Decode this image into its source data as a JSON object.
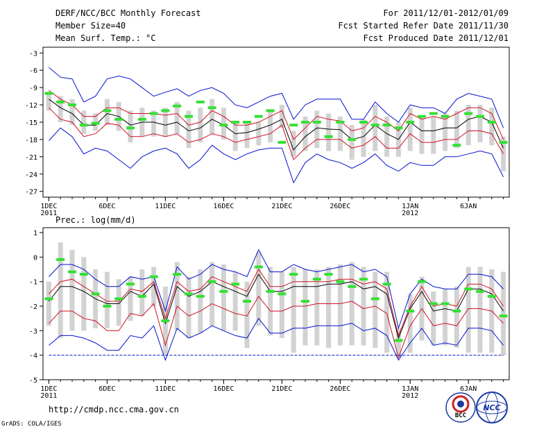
{
  "header": {
    "title": "DERF/NCC/BCC Monthly Forecast",
    "member": "Member Size=40",
    "variable": "Mean Surf. Temp.: °C",
    "period": "For 2011/12/01-2012/01/09",
    "refer": "Fcst Started Refer Date 2011/11/30",
    "produced": "Fcst Produced Date 2011/12/01"
  },
  "footer": {
    "url": "http://cmdp.ncc.cma.gov.cn",
    "credit": "GrADS: COLA/IGES",
    "logo1": "BCC",
    "logo2": "NCC"
  },
  "colors": {
    "mean": "#000000",
    "spread": "#d01020",
    "range": "#0010d0",
    "box": "#d2d2d2",
    "obs": "#33e033"
  },
  "chart_data": [
    {
      "type": "line",
      "title": "Mean Surf. Temp.: °C",
      "x": [
        1,
        2,
        3,
        4,
        5,
        6,
        7,
        8,
        9,
        10,
        11,
        12,
        13,
        14,
        15,
        16,
        17,
        18,
        19,
        20,
        21,
        22,
        23,
        24,
        25,
        26,
        27,
        28,
        29,
        30,
        31,
        32,
        33,
        34,
        35,
        36,
        37,
        38,
        39,
        40
      ],
      "xticks": [
        {
          "day": 1,
          "label": "1DEC",
          "sub": "2011"
        },
        {
          "day": 6,
          "label": "6DEC",
          "sub": ""
        },
        {
          "day": 11,
          "label": "11DEC",
          "sub": ""
        },
        {
          "day": 16,
          "label": "16DEC",
          "sub": ""
        },
        {
          "day": 21,
          "label": "21DEC",
          "sub": ""
        },
        {
          "day": 26,
          "label": "26DEC",
          "sub": ""
        },
        {
          "day": 32,
          "label": "1JAN",
          "sub": "2012"
        },
        {
          "day": 37,
          "label": "6JAN",
          "sub": ""
        }
      ],
      "xlim": [
        0.5,
        40.5
      ],
      "ylim": [
        -28,
        -2
      ],
      "yticks": [
        -3,
        -6,
        -9,
        -12,
        -15,
        -18,
        -21,
        -24,
        -27
      ],
      "series": [
        {
          "name": "max",
          "role": "range",
          "values": [
            -5.5,
            -7.2,
            -7.5,
            -11.5,
            -10.5,
            -7.5,
            -7,
            -7.5,
            -9,
            -10.5,
            -9.8,
            -9.2,
            -10.5,
            -9.5,
            -9,
            -10,
            -12,
            -12.5,
            -11.5,
            -10.5,
            -10,
            -14.5,
            -12,
            -11,
            -11,
            -11,
            -14.5,
            -14.5,
            -11.5,
            -13.5,
            -15,
            -12,
            -12.5,
            -12.5,
            -13.5,
            -11,
            -10,
            -10.5,
            -11,
            -16
          ]
        },
        {
          "name": "upper",
          "role": "spread",
          "values": [
            -9.5,
            -11,
            -12,
            -14,
            -14,
            -12.5,
            -12.5,
            -13.5,
            -13.5,
            -13.5,
            -13.8,
            -13.5,
            -15.5,
            -15,
            -13,
            -14,
            -15.5,
            -15.5,
            -15,
            -14,
            -13,
            -18,
            -16,
            -14,
            -14.5,
            -14.8,
            -16.5,
            -16,
            -14,
            -15,
            -16.5,
            -13.5,
            -14.5,
            -14,
            -14.5,
            -13.5,
            -12.5,
            -12.5,
            -13.5,
            -18
          ]
        },
        {
          "name": "mean",
          "role": "mean",
          "values": [
            -11,
            -12.5,
            -13.5,
            -15.5,
            -15.5,
            -13.5,
            -14,
            -15.5,
            -15,
            -15,
            -15.5,
            -15,
            -16.5,
            -16,
            -14.5,
            -15.5,
            -17,
            -16.8,
            -16.2,
            -15.5,
            -14.5,
            -19.8,
            -17.5,
            -16,
            -16.2,
            -16.3,
            -18,
            -17.5,
            -15.5,
            -17,
            -18,
            -15,
            -16.5,
            -16.5,
            -16,
            -16,
            -14.5,
            -14,
            -15,
            -19.5
          ]
        },
        {
          "name": "lower",
          "role": "spread",
          "values": [
            -12.5,
            -14.5,
            -15,
            -17.5,
            -17,
            -15.2,
            -15.5,
            -17.5,
            -17.5,
            -17,
            -17.5,
            -17,
            -18.5,
            -18,
            -17,
            -17.5,
            -18.5,
            -18,
            -17.5,
            -17,
            -15.5,
            -21.5,
            -19.5,
            -18,
            -18,
            -18,
            -19.5,
            -19,
            -17.5,
            -19.5,
            -19.5,
            -17,
            -18.5,
            -18.5,
            -18,
            -18,
            -16.5,
            -16.5,
            -17,
            -20.5
          ]
        },
        {
          "name": "min",
          "role": "range",
          "values": [
            -18.2,
            -16,
            -17.5,
            -20.5,
            -19.5,
            -20,
            -21.5,
            -23,
            -21,
            -20,
            -19.5,
            -20.5,
            -23,
            -21.5,
            -19,
            -20.5,
            -21.5,
            -20.5,
            -19.8,
            -19.5,
            -19.5,
            -25.5,
            -22,
            -20.5,
            -21.5,
            -22,
            -23,
            -22,
            -20.5,
            -22.5,
            -23.5,
            -22,
            -22.5,
            -22.5,
            -21,
            -21,
            -20.5,
            -20,
            -20.5,
            -24.5
          ]
        },
        {
          "name": "box_top",
          "role": "box",
          "values": [
            -10,
            -10.5,
            -11,
            -13,
            -13.5,
            -11,
            -11.5,
            -13,
            -12.5,
            -13,
            -12.5,
            -11.5,
            -13,
            -12.5,
            -11,
            -12.5,
            -15,
            -15,
            -15,
            -13,
            -12,
            -16.5,
            -14,
            -13,
            -13.5,
            -14,
            -15.5,
            -14.5,
            -12,
            -14,
            -15,
            -12.5,
            -14,
            -14,
            -13.5,
            -13,
            -12,
            -12,
            -12.5,
            -17.5
          ]
        },
        {
          "name": "box_bottom",
          "role": "box",
          "values": [
            -13,
            -15,
            -15.5,
            -17,
            -16.5,
            -15.5,
            -16.5,
            -18.5,
            -17.5,
            -17.5,
            -17.5,
            -17,
            -19.5,
            -18.5,
            -17,
            -18,
            -20,
            -19.5,
            -19,
            -18.5,
            -16,
            -21,
            -20,
            -19.5,
            -20,
            -20,
            -21.5,
            -21,
            -20,
            -21,
            -21,
            -20,
            -20.5,
            -20.5,
            -20,
            -19.5,
            -19,
            -18.5,
            -19,
            -23.5
          ]
        },
        {
          "name": "observed",
          "role": "obs",
          "values": [
            -10,
            -11.5,
            -12,
            -15.5,
            -15.2,
            -13,
            -14.5,
            -16,
            -14.5,
            -13.5,
            -13,
            -12.2,
            -14,
            -11.5,
            -12.5,
            -15.5,
            -15,
            -15,
            -14,
            -13,
            -18.5,
            -15.5,
            -15,
            -15,
            -17.5,
            -15,
            -18,
            -15,
            -15.5,
            -15.5,
            -16,
            -15,
            -14,
            -13.5,
            -14,
            -19,
            -13.5,
            -14,
            -15,
            -18.5
          ]
        }
      ]
    },
    {
      "type": "line",
      "title": "Prec.: log(mm/d)",
      "x": [
        1,
        2,
        3,
        4,
        5,
        6,
        7,
        8,
        9,
        10,
        11,
        12,
        13,
        14,
        15,
        16,
        17,
        18,
        19,
        20,
        21,
        22,
        23,
        24,
        25,
        26,
        27,
        28,
        29,
        30,
        31,
        32,
        33,
        34,
        35,
        36,
        37,
        38,
        39,
        40
      ],
      "xticks": [
        {
          "day": 1,
          "label": "1DEC",
          "sub": "2011"
        },
        {
          "day": 6,
          "label": "6DEC",
          "sub": ""
        },
        {
          "day": 11,
          "label": "11DEC",
          "sub": ""
        },
        {
          "day": 16,
          "label": "16DEC",
          "sub": ""
        },
        {
          "day": 21,
          "label": "21DEC",
          "sub": ""
        },
        {
          "day": 26,
          "label": "26DEC",
          "sub": ""
        },
        {
          "day": 32,
          "label": "1JAN",
          "sub": "2012"
        },
        {
          "day": 37,
          "label": "6JAN",
          "sub": ""
        }
      ],
      "xlim": [
        0.5,
        40.5
      ],
      "ylim": [
        -5,
        1.2
      ],
      "yticks": [
        1,
        0,
        -1,
        -2,
        -3,
        -4,
        -5
      ],
      "series": [
        {
          "name": "max",
          "role": "range",
          "values": [
            -0.8,
            -0.3,
            -0.3,
            -0.5,
            -0.9,
            -1.2,
            -1.2,
            -0.8,
            -0.9,
            -0.8,
            -2.2,
            -0.4,
            -0.9,
            -0.7,
            -0.3,
            -0.5,
            -0.6,
            -0.8,
            0.3,
            -0.6,
            -0.6,
            -0.3,
            -0.5,
            -0.6,
            -0.5,
            -0.4,
            -0.3,
            -0.6,
            -0.5,
            -0.8,
            -2.9,
            -1.5,
            -0.9,
            -1.2,
            -1.3,
            -1.3,
            -0.7,
            -0.7,
            -0.8,
            -1.3
          ]
        },
        {
          "name": "upper",
          "role": "spread",
          "values": [
            -1.5,
            -1,
            -0.9,
            -1.2,
            -1.5,
            -1.8,
            -1.8,
            -1.3,
            -1.4,
            -1,
            -2.5,
            -1,
            -1.4,
            -1.3,
            -0.8,
            -1,
            -1.2,
            -1.4,
            -0.5,
            -1.2,
            -1.2,
            -1,
            -1,
            -1,
            -1,
            -0.9,
            -0.9,
            -1.1,
            -1,
            -1.3,
            -3.2,
            -2,
            -1.2,
            -2,
            -1.9,
            -2,
            -1.1,
            -1.1,
            -1.3,
            -2
          ]
        },
        {
          "name": "mean",
          "role": "mean",
          "values": [
            -1.8,
            -1.2,
            -1.2,
            -1.4,
            -1.7,
            -1.9,
            -1.9,
            -1.4,
            -1.6,
            -1.1,
            -2.7,
            -1.2,
            -1.6,
            -1.4,
            -1,
            -1.2,
            -1.4,
            -1.6,
            -0.7,
            -1.4,
            -1.4,
            -1.2,
            -1.2,
            -1.2,
            -1.1,
            -1.1,
            -1,
            -1.3,
            -1.2,
            -1.5,
            -3.3,
            -2.1,
            -1.4,
            -2.2,
            -2.1,
            -2.2,
            -1.3,
            -1.3,
            -1.5,
            -2.2
          ]
        },
        {
          "name": "lower",
          "role": "spread",
          "values": [
            -2.7,
            -2.2,
            -2.2,
            -2.5,
            -2.6,
            -3,
            -3,
            -2.3,
            -2.4,
            -1.9,
            -3.6,
            -2,
            -2.4,
            -2.2,
            -1.9,
            -2.1,
            -2.3,
            -2.4,
            -1.6,
            -2.2,
            -2.2,
            -2,
            -2,
            -1.9,
            -1.9,
            -1.9,
            -1.8,
            -2.1,
            -2,
            -2.3,
            -4.1,
            -2.8,
            -2.1,
            -2.8,
            -2.7,
            -2.8,
            -2.1,
            -2.1,
            -2.2,
            -2.7
          ]
        },
        {
          "name": "min",
          "role": "range",
          "values": [
            -3.6,
            -3.2,
            -3.2,
            -3.3,
            -3.5,
            -3.8,
            -3.8,
            -3.2,
            -3.3,
            -2.8,
            -4.2,
            -2.9,
            -3.3,
            -3.1,
            -2.8,
            -3,
            -3.2,
            -3.3,
            -2.5,
            -3.1,
            -3.1,
            -2.9,
            -2.9,
            -2.8,
            -2.8,
            -2.8,
            -2.7,
            -3,
            -2.9,
            -3.2,
            -4.2,
            -3.5,
            -2.9,
            -3.6,
            -3.5,
            -3.6,
            -2.9,
            -2.9,
            -3,
            -3.6
          ]
        },
        {
          "name": "floor",
          "role": "range",
          "values": [
            -4,
            -4,
            -4,
            -4,
            -4,
            -4,
            -4,
            -4,
            -4,
            -4,
            -4,
            -4,
            -4,
            -4,
            -4,
            -4,
            -4,
            -4,
            -4,
            -4,
            -4,
            -4,
            -4,
            -4,
            -4,
            -4,
            -4,
            -4,
            -4,
            -4,
            -4,
            -4,
            -4,
            -4,
            -4,
            -4,
            -4,
            -4,
            -4,
            -4
          ]
        },
        {
          "name": "box_top",
          "role": "box",
          "values": [
            -1,
            0.6,
            0.3,
            0,
            -0.5,
            -0.6,
            -0.9,
            -0.8,
            -0.5,
            -0.4,
            -1.2,
            -0.2,
            -0.8,
            -0.5,
            -0.2,
            -0.3,
            -0.6,
            -1,
            0.2,
            -0.4,
            -0.6,
            -0.4,
            -0.5,
            -0.5,
            -0.4,
            -0.3,
            -0.2,
            -0.4,
            -0.6,
            -0.6,
            -2.9,
            -1.5,
            -0.8,
            -1.4,
            -1.3,
            -1.2,
            -0.4,
            -0.4,
            -0.5,
            -0.6
          ]
        },
        {
          "name": "box_bottom",
          "role": "box",
          "values": [
            -2.8,
            -3.3,
            -3,
            -3,
            -2.9,
            -2.9,
            -2.8,
            -2.6,
            -2.4,
            -2,
            -4,
            -3,
            -3.3,
            -3.1,
            -2.8,
            -3,
            -3,
            -3.7,
            -2.8,
            -3.2,
            -3.3,
            -3.9,
            -3.6,
            -3.6,
            -3.7,
            -3.6,
            -3.6,
            -3.6,
            -3.7,
            -3.9,
            -4.1,
            -3.9,
            -3.4,
            -3.6,
            -3.6,
            -3.7,
            -3.9,
            -3.9,
            -3.9,
            -4
          ]
        },
        {
          "name": "observed",
          "role": "obs",
          "values": [
            -1.7,
            -0.1,
            -0.6,
            -0.7,
            -1.5,
            -2,
            -1.7,
            -1.1,
            -1.6,
            -0.8,
            -2.6,
            -0.7,
            -1.5,
            -1.6,
            -1,
            -1.4,
            -1.1,
            -1.8,
            -0.4,
            -1.4,
            -1.5,
            -0.7,
            -1.8,
            -0.9,
            -0.7,
            -1,
            -1.2,
            -0.9,
            -1.7,
            -1.1,
            -3.4,
            -2.2,
            -1,
            -1.9,
            -1.9,
            -2.2,
            -1.3,
            -1.4,
            -1.6,
            -2.4
          ]
        }
      ]
    }
  ]
}
